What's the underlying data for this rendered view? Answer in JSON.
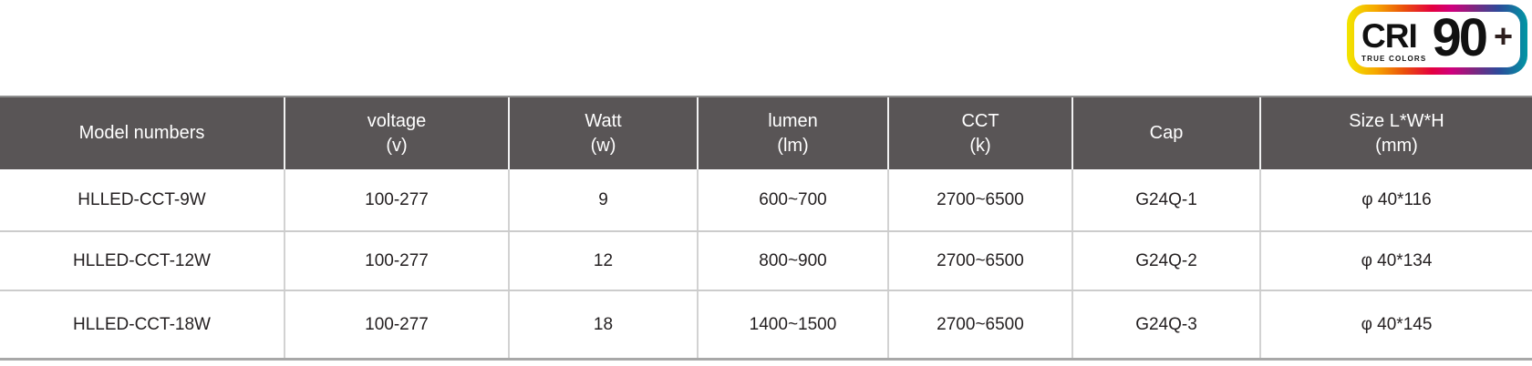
{
  "badge": {
    "cri": "CRI",
    "subtitle": "TRUE COLORS",
    "value": "90",
    "plus": "+",
    "border_gradient": [
      "#f2e600",
      "#f6a800",
      "#ea4e0c",
      "#e4003f",
      "#cf007e",
      "#81257f",
      "#2d4a9a",
      "#0097a4"
    ]
  },
  "colors": {
    "header_bg": "#595556",
    "header_text": "#ffffff",
    "body_text": "#231f20",
    "grid_line": "#cccccc",
    "table_top_border": "#8f8f8f",
    "table_bottom_border": "#a8a8a8"
  },
  "table": {
    "columns": [
      {
        "label": "Model numbers",
        "sub": ""
      },
      {
        "label": "voltage",
        "sub": "(v)"
      },
      {
        "label": "Watt",
        "sub": "(w)"
      },
      {
        "label": "lumen",
        "sub": "(lm)"
      },
      {
        "label": "CCT",
        "sub": "(k)"
      },
      {
        "label": "Cap",
        "sub": ""
      },
      {
        "label": "Size L*W*H",
        "sub": "(mm)"
      }
    ],
    "rows": [
      {
        "cells": [
          "HLLED-CCT-9W",
          "100-277",
          "9",
          "600~700",
          "2700~6500",
          "G24Q-1",
          "φ 40*116"
        ]
      },
      {
        "cells": [
          "HLLED-CCT-12W",
          "100-277",
          "12",
          "800~900",
          "2700~6500",
          "G24Q-2",
          "φ 40*134"
        ]
      },
      {
        "cells": [
          "HLLED-CCT-18W",
          "100-277",
          "18",
          "1400~1500",
          "2700~6500",
          "G24Q-3",
          "φ 40*145"
        ]
      }
    ]
  }
}
